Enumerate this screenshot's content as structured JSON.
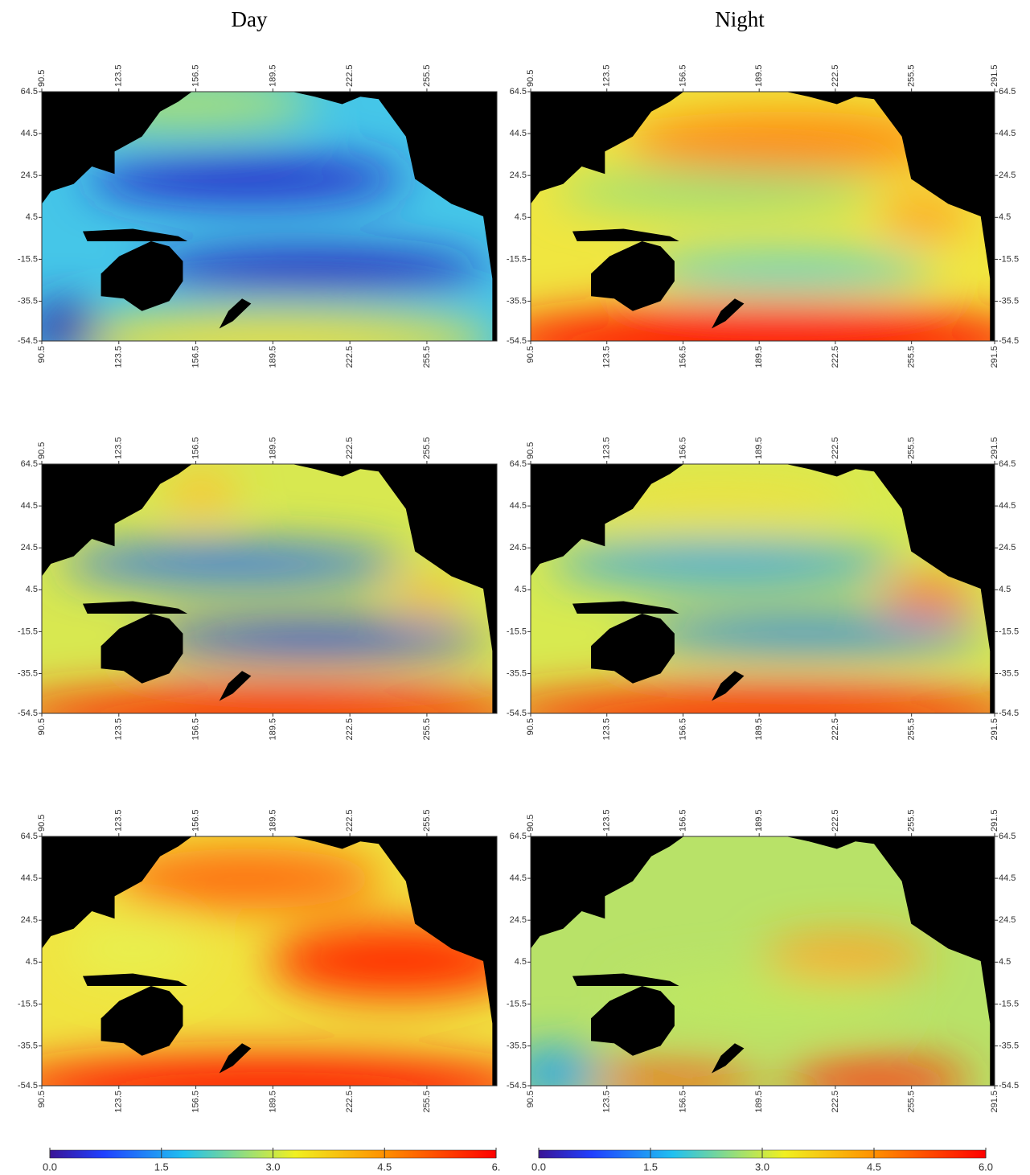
{
  "columns": [
    {
      "title": "Day",
      "xlim": [
        90.5,
        285.5
      ],
      "ylim": [
        -54.5,
        64.5
      ],
      "xticks": [
        90.5,
        123.5,
        156.5,
        189.5,
        222.5,
        255.5
      ],
      "yticks": [
        64.5,
        44.5,
        24.5,
        4.5,
        -15.5,
        -35.5,
        -54.5
      ],
      "right_yticks": [],
      "colorbar": {
        "clim": [
          0,
          6
        ],
        "ticks": [
          {
            "value": 0,
            "label": "0.0"
          },
          1.5,
          {
            "value": 3,
            "label": "3.0"
          },
          4.5,
          {
            "value": 6,
            "label": "6."
          }
        ]
      }
    },
    {
      "title": "Night",
      "xlim": [
        90.5,
        291.5
      ],
      "ylim": [
        -54.5,
        64.5
      ],
      "xticks": [
        90.5,
        123.5,
        156.5,
        189.5,
        222.5,
        255.5,
        291.5
      ],
      "yticks": [
        64.5,
        44.5,
        24.5,
        4.5,
        -15.5,
        -35.5,
        -54.5
      ],
      "right_yticks": [
        64.5,
        44.5,
        24.5,
        4.5,
        -15.5,
        -35.5,
        -54.5
      ],
      "colorbar": {
        "clim": [
          0,
          6
        ],
        "ticks": [
          {
            "value": 0,
            "label": "0.0"
          },
          1.5,
          {
            "value": 3,
            "label": "3.0"
          },
          4.5,
          {
            "value": 6,
            "label": "6.0"
          }
        ]
      }
    }
  ],
  "rows": 3
}
